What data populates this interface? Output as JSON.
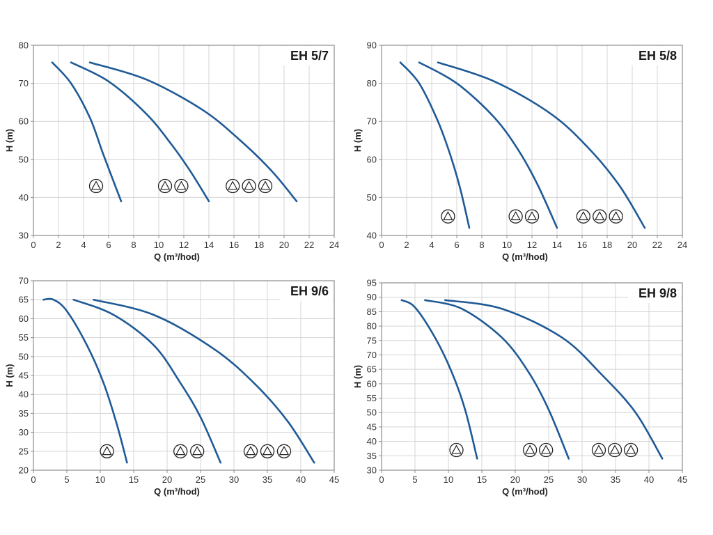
{
  "chart_data": [
    {
      "type": "line",
      "title": "EH 5/7",
      "xlabel": "Q (m³/hod)",
      "ylabel": "H (m)",
      "xlim": [
        0,
        24
      ],
      "ylim": [
        30,
        80
      ],
      "xticks": [
        0,
        2,
        4,
        6,
        8,
        10,
        12,
        14,
        16,
        18,
        20,
        22,
        24
      ],
      "yticks": [
        30,
        40,
        50,
        60,
        70,
        80
      ],
      "grid": true,
      "series": [
        {
          "pumps": 1,
          "x": [
            1.5,
            3,
            4.5,
            5.5,
            6.3,
            7.0
          ],
          "y": [
            75.5,
            70,
            61,
            52,
            45,
            39
          ]
        },
        {
          "pumps": 2,
          "x": [
            3,
            6,
            9,
            11,
            12.5,
            14
          ],
          "y": [
            75.5,
            70.5,
            62,
            54,
            47,
            39
          ]
        },
        {
          "pumps": 3,
          "x": [
            4.5,
            9,
            13.5,
            16.5,
            19,
            21
          ],
          "y": [
            75.5,
            71,
            63,
            55,
            47,
            39
          ]
        }
      ],
      "pump_markers": [
        {
          "count": 1,
          "x": [
            5.0
          ],
          "y": 43
        },
        {
          "count": 2,
          "x": [
            10.5,
            11.8
          ],
          "y": 43
        },
        {
          "count": 3,
          "x": [
            15.9,
            17.2,
            18.5
          ],
          "y": 43
        }
      ]
    },
    {
      "type": "line",
      "title": "EH 5/8",
      "xlabel": "Q (m³/hod)",
      "ylabel": "H (m)",
      "xlim": [
        0,
        24
      ],
      "ylim": [
        40,
        90
      ],
      "xticks": [
        0,
        2,
        4,
        6,
        8,
        10,
        12,
        14,
        16,
        18,
        20,
        22,
        24
      ],
      "yticks": [
        40,
        50,
        60,
        70,
        80,
        90
      ],
      "grid": true,
      "series": [
        {
          "pumps": 1,
          "x": [
            1.5,
            3,
            4.5,
            5.5,
            6.3,
            7.0
          ],
          "y": [
            85.5,
            80,
            70,
            61,
            52,
            42
          ]
        },
        {
          "pumps": 2,
          "x": [
            3,
            6,
            9,
            11,
            12.5,
            14
          ],
          "y": [
            85.5,
            80,
            71,
            62,
            53,
            42
          ]
        },
        {
          "pumps": 3,
          "x": [
            4.5,
            9,
            13.5,
            16.5,
            19,
            21
          ],
          "y": [
            85.5,
            80.5,
            72,
            63,
            53,
            42
          ]
        }
      ],
      "pump_markers": [
        {
          "count": 1,
          "x": [
            5.3
          ],
          "y": 45
        },
        {
          "count": 2,
          "x": [
            10.7,
            12.0
          ],
          "y": 45
        },
        {
          "count": 3,
          "x": [
            16.1,
            17.4,
            18.7
          ],
          "y": 45
        }
      ]
    },
    {
      "type": "line",
      "title": "EH 9/6",
      "xlabel": "Q (m³/hod)",
      "ylabel": "H (m)",
      "xlim": [
        0,
        45
      ],
      "ylim": [
        20,
        70
      ],
      "xticks": [
        0,
        5,
        10,
        15,
        20,
        25,
        30,
        35,
        40,
        45
      ],
      "yticks": [
        20,
        25,
        30,
        35,
        40,
        45,
        50,
        55,
        60,
        65,
        70
      ],
      "grid": true,
      "series": [
        {
          "pumps": 1,
          "x": [
            1.5,
            3,
            5,
            8,
            10.5,
            12.5,
            14
          ],
          "y": [
            65,
            65,
            62,
            53,
            43,
            32,
            22
          ]
        },
        {
          "pumps": 2,
          "x": [
            6,
            12,
            18,
            22,
            25,
            28
          ],
          "y": [
            65,
            61,
            53,
            43,
            34,
            22
          ]
        },
        {
          "pumps": 3,
          "x": [
            9,
            18,
            27,
            33,
            38,
            42
          ],
          "y": [
            65,
            61,
            52,
            43,
            33,
            22
          ]
        }
      ],
      "pump_markers": [
        {
          "count": 1,
          "x": [
            11.0
          ],
          "y": 25
        },
        {
          "count": 2,
          "x": [
            22.0,
            24.5
          ],
          "y": 25
        },
        {
          "count": 3,
          "x": [
            32.5,
            35.0,
            37.5
          ],
          "y": 25
        }
      ]
    },
    {
      "type": "line",
      "title": "EH 9/8",
      "xlabel": "Q (m³/hod)",
      "ylabel": "H (m)",
      "xlim": [
        0,
        45
      ],
      "ylim": [
        30,
        95
      ],
      "xticks": [
        0,
        5,
        10,
        15,
        20,
        25,
        30,
        35,
        40,
        45
      ],
      "yticks": [
        30,
        35,
        40,
        45,
        50,
        55,
        60,
        65,
        70,
        75,
        80,
        85,
        90,
        95
      ],
      "grid": true,
      "series": [
        {
          "pumps": 1,
          "x": [
            3,
            5,
            8,
            10.5,
            12.5,
            14.3
          ],
          "y": [
            89,
            86.5,
            76,
            64,
            51,
            34
          ]
        },
        {
          "pumps": 2,
          "x": [
            6.5,
            12,
            18,
            22,
            25,
            28
          ],
          "y": [
            89,
            86,
            76,
            64,
            51,
            34
          ]
        },
        {
          "pumps": 3,
          "x": [
            9.5,
            18,
            27,
            33,
            38,
            42
          ],
          "y": [
            89,
            86,
            76,
            63,
            50,
            34
          ]
        }
      ],
      "pump_markers": [
        {
          "count": 1,
          "x": [
            11.2
          ],
          "y": 37
        },
        {
          "count": 2,
          "x": [
            22.2,
            24.6
          ],
          "y": 37
        },
        {
          "count": 3,
          "x": [
            32.5,
            34.9,
            37.3
          ],
          "y": 37
        }
      ]
    }
  ]
}
